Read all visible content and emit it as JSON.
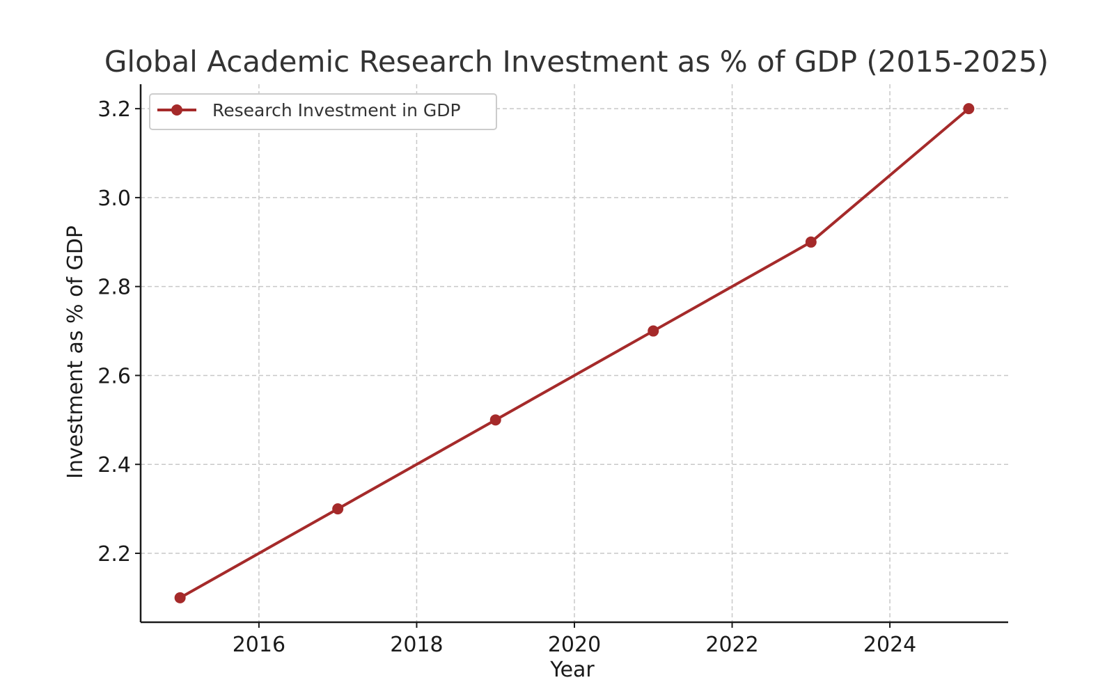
{
  "chart_data": {
    "type": "line",
    "title": "Global Academic Research Investment as % of GDP (2015-2025)",
    "xlabel": "Year",
    "ylabel": "Investment as % of GDP",
    "xlim": [
      2014.5,
      2025.5
    ],
    "ylim": [
      2.045,
      3.255
    ],
    "x_ticks": [
      2016,
      2018,
      2020,
      2022,
      2024
    ],
    "y_ticks": [
      2.2,
      2.4,
      2.6,
      2.8,
      3.0,
      3.2
    ],
    "y_tick_labels": [
      "2.2",
      "2.4",
      "2.6",
      "2.8",
      "3.0",
      "3.2"
    ],
    "grid": true,
    "legend_position": "top-left",
    "series": [
      {
        "name": "Research Investment in GDP",
        "color": "#a52a2a",
        "marker": "circle",
        "x": [
          2015,
          2017,
          2019,
          2021,
          2023,
          2025
        ],
        "y": [
          2.1,
          2.3,
          2.5,
          2.7,
          2.9,
          3.2
        ]
      }
    ]
  }
}
